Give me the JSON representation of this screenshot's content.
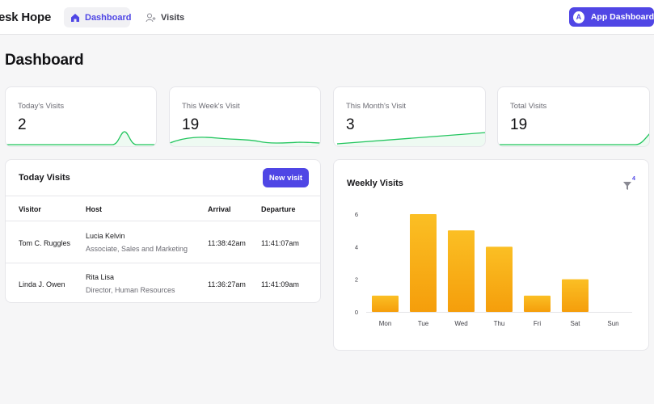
{
  "topbar": {
    "brand": "esk Hope",
    "nav": [
      {
        "label": "Dashboard",
        "active": true
      },
      {
        "label": "Visits",
        "active": false
      }
    ],
    "app_button": {
      "initial": "A",
      "label": "App Dashboard"
    }
  },
  "page": {
    "title": "Dashboard"
  },
  "stats": [
    {
      "label": "Today's Visits",
      "value": "2"
    },
    {
      "label": "This Week's Visit",
      "value": "19"
    },
    {
      "label": "This Month's Visit",
      "value": "3"
    },
    {
      "label": "Total Visits",
      "value": "19"
    }
  ],
  "today_visits": {
    "title": "Today Visits",
    "new_button": "New visit",
    "columns": [
      "Visitor",
      "Host",
      "Arrival",
      "Departure"
    ],
    "rows": [
      {
        "visitor": "Tom C. Ruggles",
        "host": "Lucia Kelvin",
        "host_role": "Associate, Sales and Marketing",
        "arrival": "11:38:42am",
        "departure": "11:41:07am"
      },
      {
        "visitor": "Linda J. Owen",
        "host": "Rita Lisa",
        "host_role": "Director, Human Resources",
        "arrival": "11:36:27am",
        "departure": "11:41:09am"
      }
    ]
  },
  "weekly": {
    "title": "Weekly Visits",
    "filter_count": "4"
  },
  "colors": {
    "accent": "#4f46e5",
    "spark": "#22c55e",
    "bar_top": "#fbbf24",
    "bar_bottom": "#f59e0b"
  },
  "chart_data": {
    "type": "bar",
    "categories": [
      "Mon",
      "Tue",
      "Wed",
      "Thu",
      "Fri",
      "Sat",
      "Sun"
    ],
    "values": [
      1,
      6,
      5,
      4,
      1,
      2,
      0
    ],
    "y_ticks": [
      "0",
      "2",
      "4",
      "6"
    ],
    "ylim": [
      0,
      6
    ],
    "grid": false
  }
}
